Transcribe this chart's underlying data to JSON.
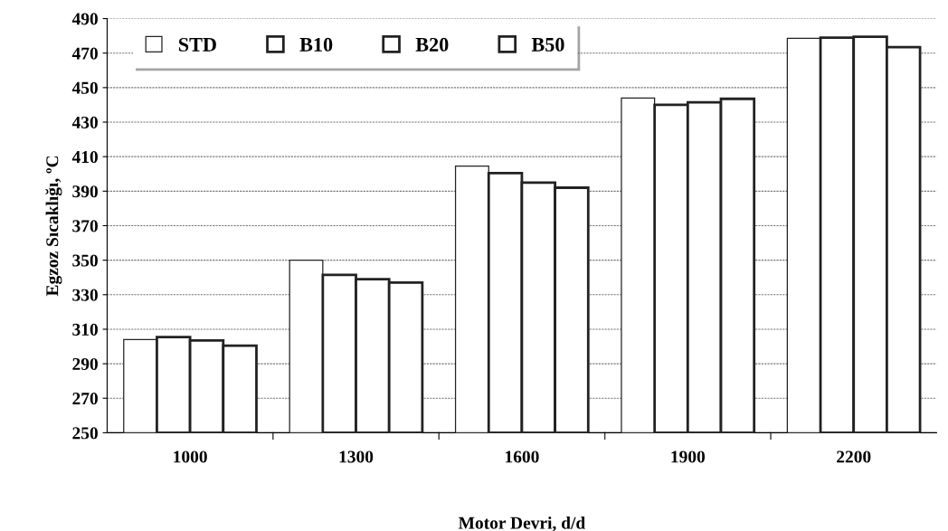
{
  "chart_data": {
    "type": "bar",
    "xlabel": "Motor Devri, d/d",
    "ylabel": "Egzoz Sıcaklığı, ºC",
    "categories": [
      "1000",
      "1300",
      "1600",
      "1900",
      "2200"
    ],
    "series": [
      {
        "name": "STD",
        "color": "#ffffff",
        "values": [
          304,
          350,
          404.5,
          444,
          478.5
        ]
      },
      {
        "name": "B10",
        "color": "#ffffff",
        "values": [
          305.5,
          341.5,
          400.5,
          440,
          479
        ]
      },
      {
        "name": "B20",
        "color": "#ffffff",
        "values": [
          303.5,
          339,
          395,
          441.5,
          479.5
        ]
      },
      {
        "name": "B50",
        "color": "#ffffff",
        "values": [
          300.5,
          337,
          392,
          443.5,
          473.5
        ]
      }
    ],
    "ylim": [
      250,
      490
    ],
    "yticks": [
      250,
      270,
      290,
      310,
      330,
      350,
      370,
      390,
      410,
      430,
      450,
      470,
      490
    ],
    "grid": "y",
    "legend": "top left"
  }
}
